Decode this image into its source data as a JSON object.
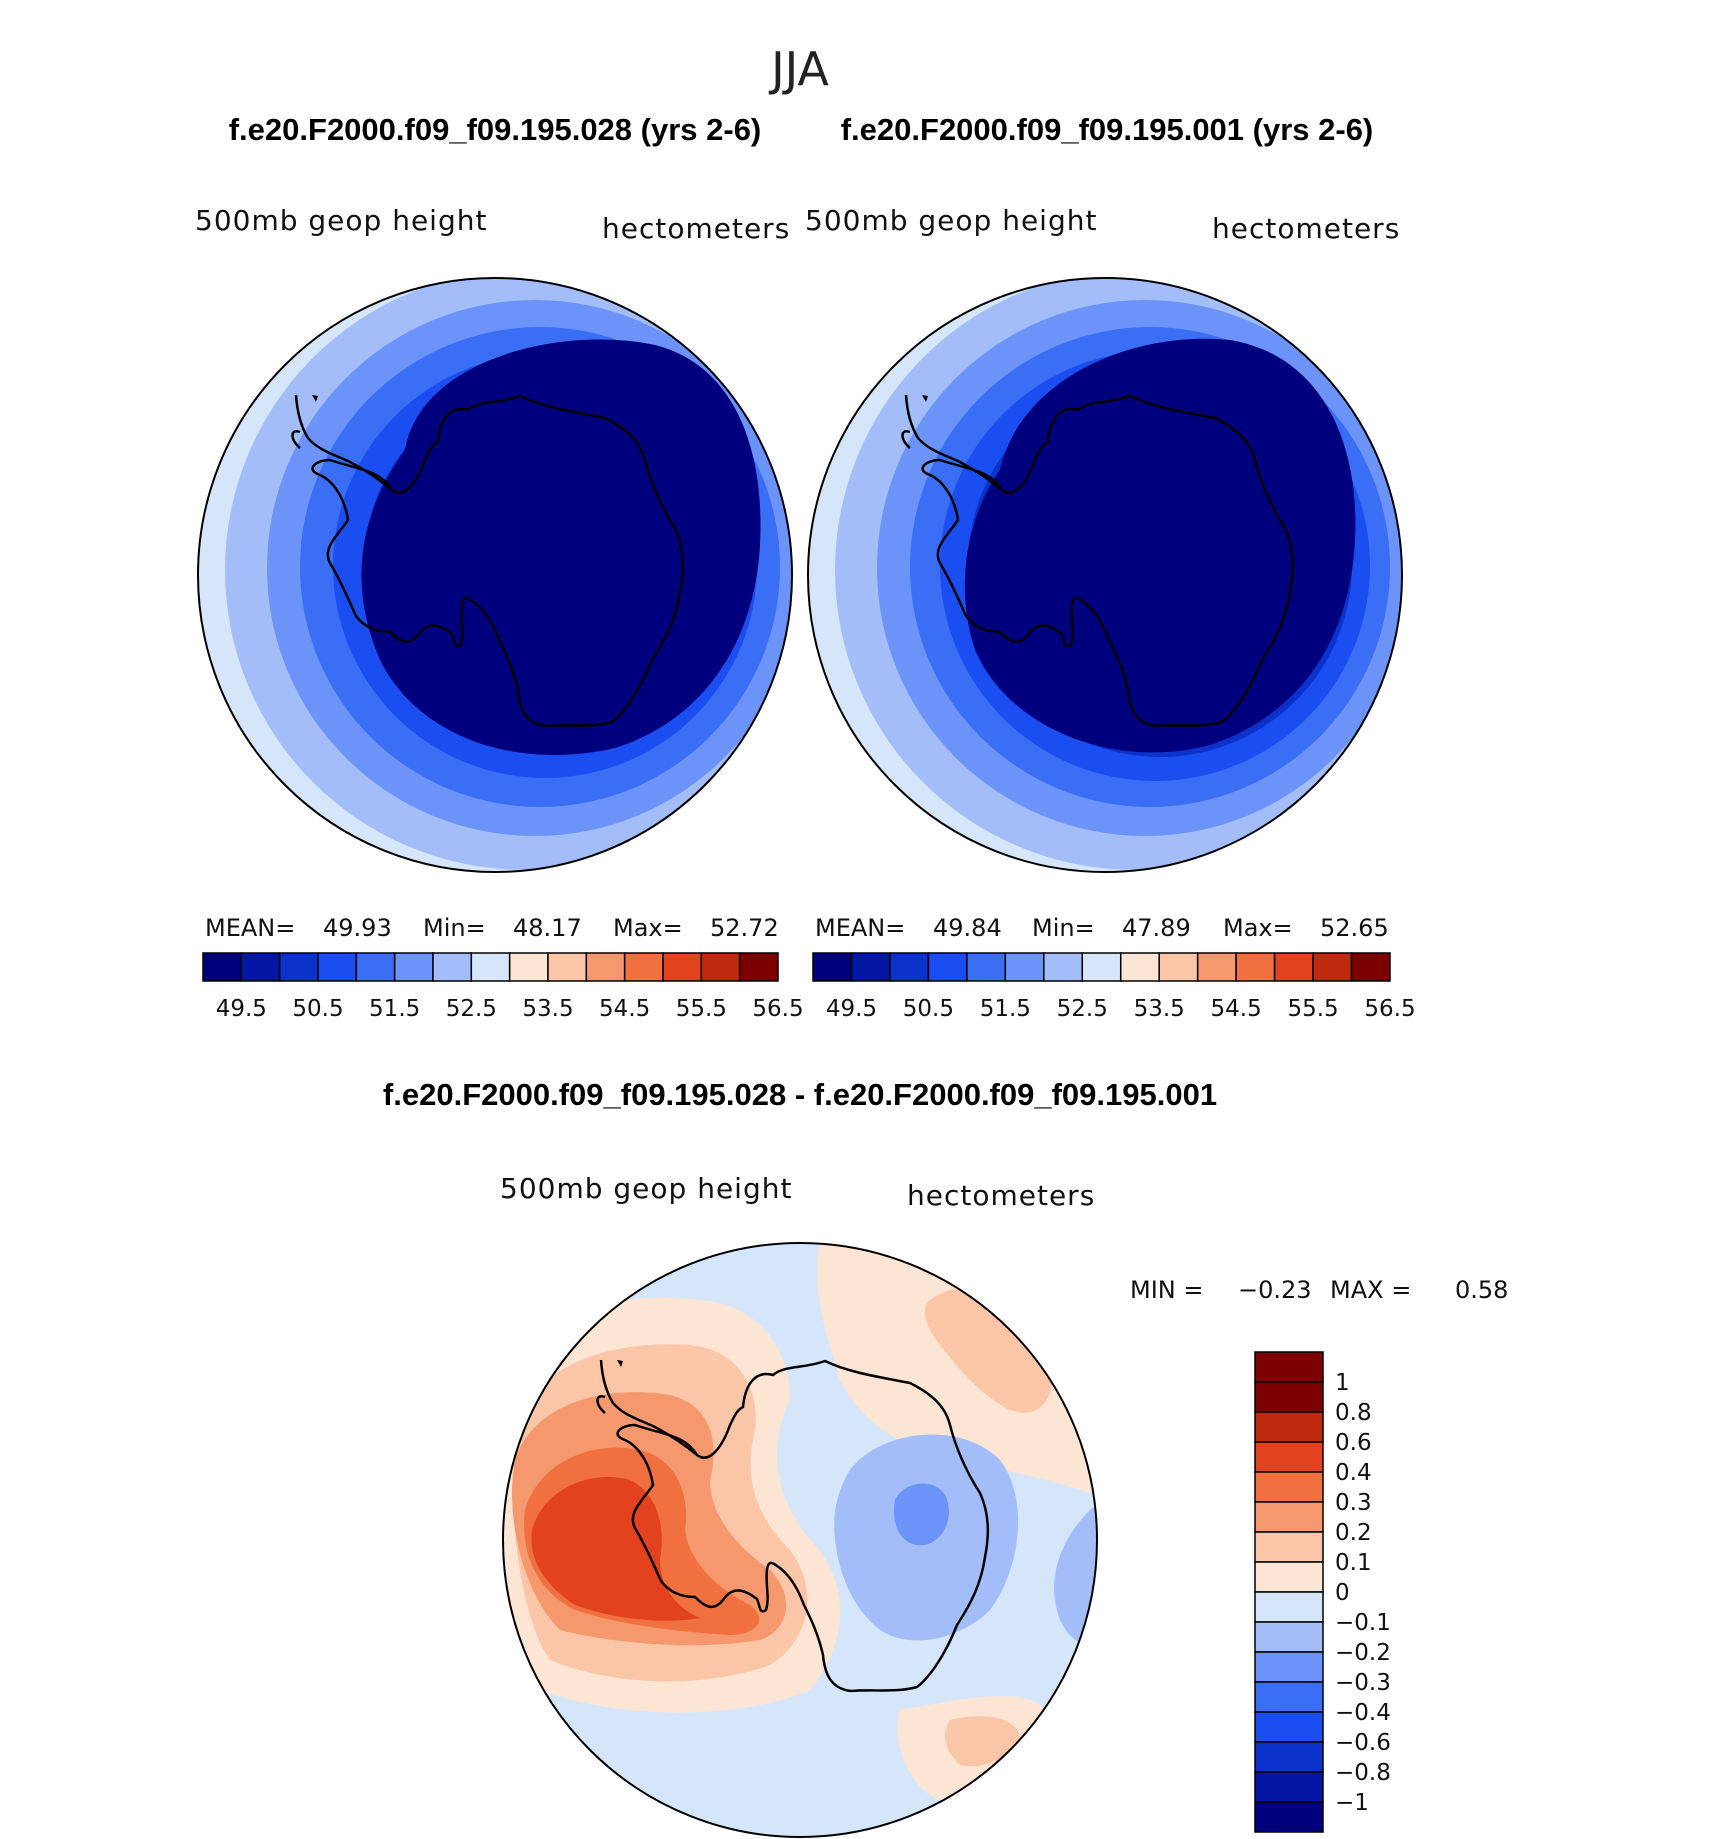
{
  "figure_title": "JJA",
  "chart_data": [
    {
      "type": "heatmap",
      "projection": "south-polar stereographic",
      "case_title": "f.e20.F2000.f09_f09.195.028 (yrs 2-6)",
      "variable": "500mb geop height",
      "units": "hectometers",
      "stats": {
        "mean_label": "MEAN=",
        "mean": "49.93",
        "min_label": "Min=",
        "min": "48.17",
        "max_label": "Max=",
        "max": "52.72"
      },
      "levels": [
        49.5,
        50,
        50.5,
        51,
        51.5,
        52,
        52.5,
        53,
        53.5,
        54,
        54.5,
        55,
        55.5,
        56,
        56.5
      ],
      "tick_labels": [
        "49.5",
        "50.5",
        "51.5",
        "52.5",
        "53.5",
        "54.5",
        "55.5",
        "56.5"
      ],
      "orientation": "horizontal"
    },
    {
      "type": "heatmap",
      "projection": "south-polar stereographic",
      "case_title": "f.e20.F2000.f09_f09.195.001 (yrs 2-6)",
      "variable": "500mb geop height",
      "units": "hectometers",
      "stats": {
        "mean_label": "MEAN=",
        "mean": "49.84",
        "min_label": "Min=",
        "min": "47.89",
        "max_label": "Max=",
        "max": "52.65"
      },
      "levels": [
        49.5,
        50,
        50.5,
        51,
        51.5,
        52,
        52.5,
        53,
        53.5,
        54,
        54.5,
        55,
        55.5,
        56,
        56.5
      ],
      "tick_labels": [
        "49.5",
        "50.5",
        "51.5",
        "52.5",
        "53.5",
        "54.5",
        "55.5",
        "56.5"
      ],
      "orientation": "horizontal"
    },
    {
      "type": "heatmap",
      "projection": "south-polar stereographic",
      "case_title": "f.e20.F2000.f09_f09.195.028 - f.e20.F2000.f09_f09.195.001",
      "variable": "500mb geop height",
      "units": "hectometers",
      "stats": {
        "min_label": "MIN =",
        "min": "−0.23",
        "max_label": "MAX =",
        "max": "0.58"
      },
      "levels": [
        -1,
        -0.8,
        -0.6,
        -0.4,
        -0.3,
        -0.2,
        -0.1,
        0,
        0.1,
        0.2,
        0.3,
        0.4,
        0.6,
        0.8,
        1
      ],
      "tick_labels": [
        "1",
        "0.8",
        "0.6",
        "0.4",
        "0.3",
        "0.2",
        "0.1",
        "0",
        "−0.1",
        "−0.2",
        "−0.3",
        "−0.4",
        "−0.6",
        "−0.8",
        "−1"
      ],
      "orientation": "vertical"
    }
  ],
  "palette": [
    "#00007f",
    "#0316a5",
    "#0c32cc",
    "#1a4ef0",
    "#3a6ef5",
    "#6c93f8",
    "#a3bdf8",
    "#d6e6fa",
    "#fde5d4",
    "#fbc5a8",
    "#f5986e",
    "#f07040",
    "#e2421e",
    "#be2a0e",
    "#7d0000"
  ],
  "land_outline_color": "#000000"
}
